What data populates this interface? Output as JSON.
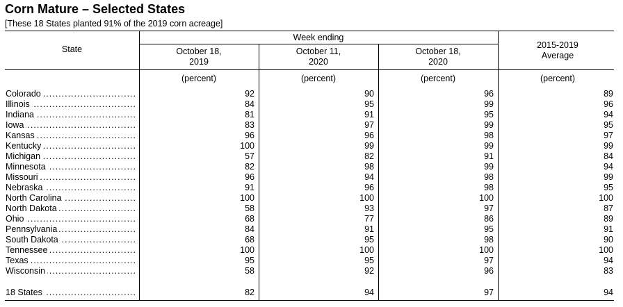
{
  "title": "Corn Mature – Selected States",
  "subtitle": "[These 18 States planted 91% of the 2019 corn acreage]",
  "headers": {
    "state": "State",
    "week_ending": "Week ending",
    "col1_line1": "October 18,",
    "col1_line2": "2019",
    "col2_line1": "October 11,",
    "col2_line2": "2020",
    "col3_line1": "October 18,",
    "col3_line2": "2020",
    "col4_line1": "2015-2019",
    "col4_line2": "Average",
    "unit": "(percent)"
  },
  "rows": [
    {
      "state": "Colorado",
      "v": [
        "92",
        "90",
        "96",
        "89"
      ]
    },
    {
      "state": "Illinois",
      "v": [
        "84",
        "95",
        "99",
        "96"
      ]
    },
    {
      "state": "Indiana",
      "v": [
        "81",
        "91",
        "95",
        "94"
      ]
    },
    {
      "state": "Iowa",
      "v": [
        "83",
        "97",
        "99",
        "95"
      ]
    },
    {
      "state": "Kansas",
      "v": [
        "96",
        "96",
        "98",
        "97"
      ]
    },
    {
      "state": "Kentucky",
      "v": [
        "100",
        "99",
        "99",
        "99"
      ]
    },
    {
      "state": "Michigan",
      "v": [
        "57",
        "82",
        "91",
        "84"
      ]
    },
    {
      "state": "Minnesota",
      "v": [
        "82",
        "98",
        "99",
        "94"
      ]
    },
    {
      "state": "Missouri",
      "v": [
        "96",
        "94",
        "98",
        "99"
      ]
    },
    {
      "state": "Nebraska",
      "v": [
        "91",
        "96",
        "98",
        "95"
      ]
    },
    {
      "state": "North Carolina",
      "v": [
        "100",
        "100",
        "100",
        "100"
      ]
    },
    {
      "state": "North Dakota",
      "v": [
        "58",
        "93",
        "97",
        "87"
      ]
    },
    {
      "state": "Ohio",
      "v": [
        "68",
        "77",
        "86",
        "89"
      ]
    },
    {
      "state": "Pennsylvania",
      "v": [
        "84",
        "91",
        "95",
        "91"
      ]
    },
    {
      "state": "South Dakota",
      "v": [
        "68",
        "95",
        "98",
        "90"
      ]
    },
    {
      "state": "Tennessee",
      "v": [
        "100",
        "100",
        "100",
        "100"
      ]
    },
    {
      "state": "Texas",
      "v": [
        "95",
        "95",
        "97",
        "94"
      ]
    },
    {
      "state": "Wisconsin",
      "v": [
        "58",
        "92",
        "96",
        "83"
      ]
    }
  ],
  "total": {
    "state": "18 States",
    "v": [
      "82",
      "94",
      "97",
      "94"
    ]
  }
}
